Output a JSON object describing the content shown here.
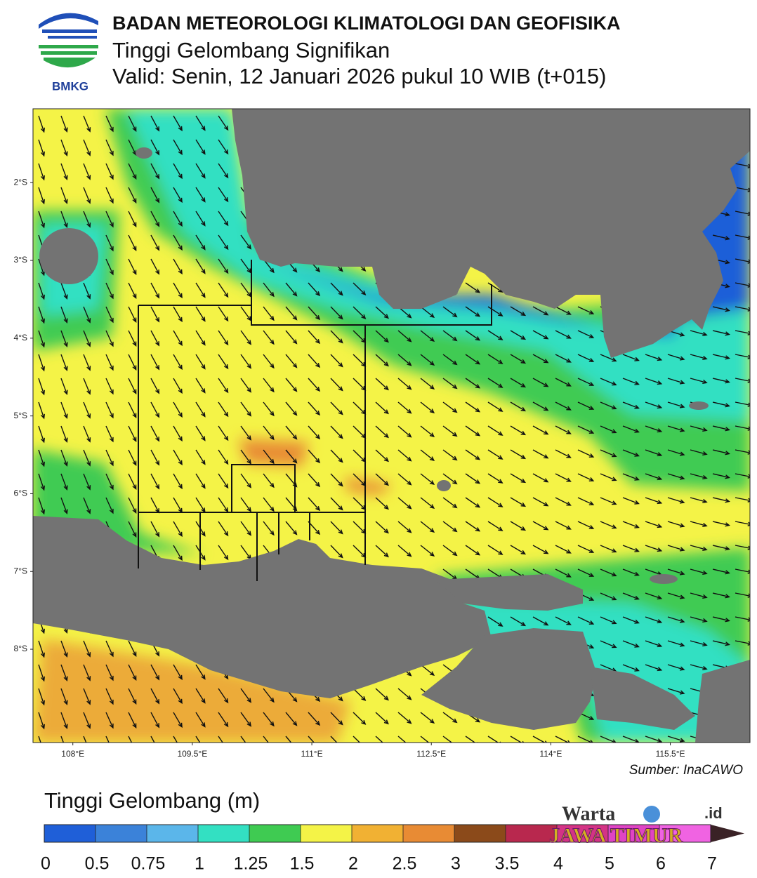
{
  "header": {
    "logo_text": "BMKG",
    "title": "BADAN METEOROLOGI KLIMATOLOGI DAN GEOFISIKA",
    "subtitle": "Tinggi Gelombang Signifikan",
    "valid": "Valid: Senin, 12 Januari 2026 pukul 10 WIB (t+015)"
  },
  "map": {
    "xlim": [
      107.5,
      116.5
    ],
    "ylim": [
      -9.2,
      -1.05
    ],
    "xticks": [
      {
        "value": 108,
        "label": "108°E"
      },
      {
        "value": 109.5,
        "label": "109.5°E"
      },
      {
        "value": 111,
        "label": "111°E"
      },
      {
        "value": 112.5,
        "label": "112.5°E"
      },
      {
        "value": 114,
        "label": "114°E"
      },
      {
        "value": 115.5,
        "label": "115.5°E"
      }
    ],
    "yticks": [
      {
        "value": -2,
        "label": "2°S"
      },
      {
        "value": -3,
        "label": "3°S"
      },
      {
        "value": -4,
        "label": "4°S"
      },
      {
        "value": -5,
        "label": "5°S"
      },
      {
        "value": -6,
        "label": "6°S"
      },
      {
        "value": -7,
        "label": "7°S"
      },
      {
        "value": -8,
        "label": "8°S"
      }
    ],
    "source": "Sumber: InaCAWO"
  },
  "legend": {
    "title": "Tinggi Gelombang (m)",
    "boundaries": [
      0,
      0.5,
      0.75,
      1,
      1.25,
      1.5,
      2,
      2.5,
      3,
      3.5,
      4,
      5,
      6,
      7
    ],
    "colors": [
      "#1f5fd8",
      "#3b82d9",
      "#5bb6ea",
      "#33e0c2",
      "#3fcb52",
      "#f4f347",
      "#f1b133",
      "#e88b34",
      "#8b4a1a",
      "#b8284e",
      "#d43385",
      "#e044c4",
      "#f063e2"
    ],
    "extend_color": "#3a2226"
  },
  "watermark": {
    "name": "Warta",
    "brand": "JAWA TIMUR",
    "domain": ".id"
  }
}
